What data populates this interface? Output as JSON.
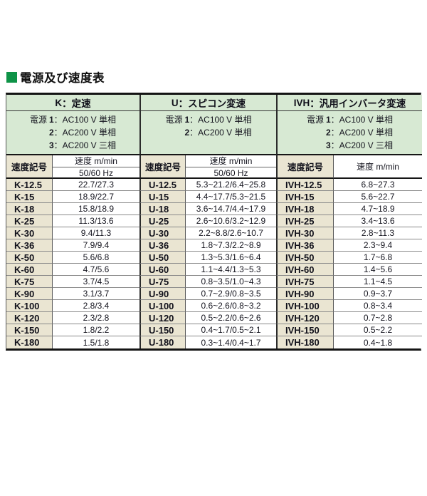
{
  "page": {
    "title": "電源及び速度表"
  },
  "colors": {
    "title_square_green": "#0e9347",
    "header_green_bg": "#d7e9d3",
    "code_beige_bg": "#eae5d2",
    "border_black": "#141414"
  },
  "table": {
    "sections": [
      {
        "key": "K",
        "header_code": "K",
        "header_name": "：定速",
        "power_label": "電源",
        "power_options": [
          {
            "num": "1",
            "desc": "：AC100 V 単相"
          },
          {
            "num": "2",
            "desc": "：AC200 V 単相"
          },
          {
            "num": "3",
            "desc": "：AC200 V 三相"
          }
        ],
        "code_header": "速度記号",
        "speed_header": "速度 m/min",
        "freq_header": "50/60 Hz",
        "rows": [
          {
            "code": "K-12.5",
            "value": "22.7/27.3"
          },
          {
            "code": "K-15",
            "value": "18.9/22.7"
          },
          {
            "code": "K-18",
            "value": "15.8/18.9"
          },
          {
            "code": "K-25",
            "value": "11.3/13.6"
          },
          {
            "code": "K-30",
            "value": "9.4/11.3"
          },
          {
            "code": "K-36",
            "value": "7.9/9.4"
          },
          {
            "code": "K-50",
            "value": "5.6/6.8"
          },
          {
            "code": "K-60",
            "value": "4.7/5.6"
          },
          {
            "code": "K-75",
            "value": "3.7/4.5"
          },
          {
            "code": "K-90",
            "value": "3.1/3.7"
          },
          {
            "code": "K-100",
            "value": "2.8/3.4"
          },
          {
            "code": "K-120",
            "value": "2.3/2.8"
          },
          {
            "code": "K-150",
            "value": "1.8/2.2"
          },
          {
            "code": "K-180",
            "value": "1.5/1.8"
          }
        ]
      },
      {
        "key": "U",
        "header_code": "U",
        "header_name": "：スピコン変速",
        "power_label": "電源",
        "power_options": [
          {
            "num": "1",
            "desc": "：AC100 V 単相"
          },
          {
            "num": "2",
            "desc": "：AC200 V 単相"
          }
        ],
        "code_header": "速度記号",
        "speed_header": "速度 m/min",
        "freq_header": "50/60 Hz",
        "rows": [
          {
            "code": "U-12.5",
            "value": "5.3~21.2/6.4~25.8"
          },
          {
            "code": "U-15",
            "value": "4.4~17.7/5.3~21.5"
          },
          {
            "code": "U-18",
            "value": "3.6~14.7/4.4~17.9"
          },
          {
            "code": "U-25",
            "value": "2.6~10.6/3.2~12.9"
          },
          {
            "code": "U-30",
            "value": "2.2~8.8/2.6~10.7"
          },
          {
            "code": "U-36",
            "value": "1.8~7.3/2.2~8.9"
          },
          {
            "code": "U-50",
            "value": "1.3~5.3/1.6~6.4"
          },
          {
            "code": "U-60",
            "value": "1.1~4.4/1.3~5.3"
          },
          {
            "code": "U-75",
            "value": "0.8~3.5/1.0~4.3"
          },
          {
            "code": "U-90",
            "value": "0.7~2.9/0.8~3.5"
          },
          {
            "code": "U-100",
            "value": "0.6~2.6/0.8~3.2"
          },
          {
            "code": "U-120",
            "value": "0.5~2.2/0.6~2.6"
          },
          {
            "code": "U-150",
            "value": "0.4~1.7/0.5~2.1"
          },
          {
            "code": "U-180",
            "value": "0.3~1.4/0.4~1.7"
          }
        ]
      },
      {
        "key": "IVH",
        "header_code": "IVH",
        "header_name": "：汎用インバータ変速",
        "power_label": "電源",
        "power_options": [
          {
            "num": "1",
            "desc": "：AC100 V 単相"
          },
          {
            "num": "2",
            "desc": "：AC200 V 単相"
          },
          {
            "num": "3",
            "desc": "：AC200 V 三相"
          }
        ],
        "code_header": "速度記号",
        "speed_header": "速度 m/min",
        "rows": [
          {
            "code": "IVH-12.5",
            "value": "6.8~27.3"
          },
          {
            "code": "IVH-15",
            "value": "5.6~22.7"
          },
          {
            "code": "IVH-18",
            "value": "4.7~18.9"
          },
          {
            "code": "IVH-25",
            "value": "3.4~13.6"
          },
          {
            "code": "IVH-30",
            "value": "2.8~11.3"
          },
          {
            "code": "IVH-36",
            "value": "2.3~9.4"
          },
          {
            "code": "IVH-50",
            "value": "1.7~6.8"
          },
          {
            "code": "IVH-60",
            "value": "1.4~5.6"
          },
          {
            "code": "IVH-75",
            "value": "1.1~4.5"
          },
          {
            "code": "IVH-90",
            "value": "0.9~3.7"
          },
          {
            "code": "IVH-100",
            "value": "0.8~3.4"
          },
          {
            "code": "IVH-120",
            "value": "0.7~2.8"
          },
          {
            "code": "IVH-150",
            "value": "0.5~2.2"
          },
          {
            "code": "IVH-180",
            "value": "0.4~1.8"
          }
        ]
      }
    ]
  }
}
